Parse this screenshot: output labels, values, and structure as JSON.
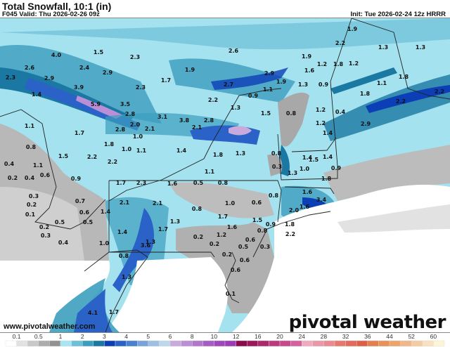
{
  "header": {
    "title": "Total Snowfall, 10:1 (in)",
    "valid": "F045 Valid: Thu 2026-02-26 09z",
    "init": "Init: Tue 2026-02-24 12z HRRR"
  },
  "map": {
    "labels": [
      "4.0",
      "1.5",
      "2.3",
      "2.6",
      "2.3",
      "2.9",
      "2.4",
      "2.9",
      "3.9",
      "1.4",
      "5.9",
      "3.5",
      "2.8",
      "2.3",
      "2.6",
      "1.9",
      "1.7",
      "2.9",
      "2.7",
      "1.9",
      "2.2",
      "1.1",
      "0.9",
      "1.3",
      "1.5",
      "0.8",
      "3.1",
      "3.8",
      "2.8",
      "1.9",
      "2.2",
      "1.3",
      "1.3",
      "1.9",
      "1.2",
      "1.8",
      "1.2",
      "1.6",
      "1.3",
      "0.9",
      "1.8",
      "1.1",
      "1.8",
      "2.2",
      "2.2",
      "1.2",
      "0.4",
      "1.4",
      "2.9",
      "1.1",
      "1.7",
      "1.5",
      "0.8",
      "0.4",
      "1.1",
      "0.2",
      "0.4",
      "0.6",
      "0.9",
      "2.2",
      "2.2",
      "1.8",
      "1.0",
      "1.1",
      "2.0",
      "2.1",
      "2.8",
      "1.0",
      "2.1",
      "1.4",
      "1.8",
      "1.3",
      "0.8",
      "0.3",
      "1.5",
      "1.4",
      "1.3",
      "1.1",
      "1.6",
      "0.5",
      "0.8",
      "1.7",
      "2.3",
      "0.8",
      "0.6",
      "1.0",
      "0.8",
      "1.7",
      "1.5",
      "2.1",
      "2.1",
      "0.7",
      "0.3",
      "0.2",
      "0.1",
      "0.5",
      "0.6",
      "0.5",
      "0.2",
      "0.3",
      "0.4",
      "1.4",
      "1.4",
      "1.7",
      "1.3",
      "1.3",
      "1.0",
      "3.6",
      "0.8",
      "0.2",
      "0.2",
      "1.2",
      "1.6",
      "0.9",
      "0.8",
      "0.6",
      "0.5",
      "0.2",
      "0.6",
      "0.3",
      "0.6",
      "0.1",
      "1.3",
      "4.1",
      "1.7",
      "1.6",
      "1.6",
      "2.0",
      "3.4",
      "1.8",
      "1.0",
      "0.9",
      "1.8",
      "2.2",
      "1.4",
      "1.2"
    ]
  },
  "watermark": "www.pivotalweather.com",
  "logo": "pivotal weather",
  "legend": {
    "ticks": [
      "0.1",
      "0.5",
      "1",
      "2",
      "3",
      "4",
      "5",
      "6",
      "8",
      "10",
      "12",
      "16",
      "20",
      "24",
      "28",
      "32",
      "36",
      "44",
      "52",
      "60"
    ],
    "colors": [
      "#ffffff",
      "#e2e2e2",
      "#c8c8c8",
      "#acacac",
      "#929292",
      "#a6e6f0",
      "#6cc0d8",
      "#3c9ebe",
      "#1a78a2",
      "#0c3fb6",
      "#2a62c8",
      "#4a80d0",
      "#78a2da",
      "#9cbfe2",
      "#bcd8ec",
      "#c8aadc",
      "#bb8fd6",
      "#b077cc",
      "#a55cc4",
      "#a246bc",
      "#9c3cb8",
      "#8a0c4a",
      "#9c1858",
      "#ac2a6a",
      "#bc3a7c",
      "#c8488c",
      "#d4609e",
      "#eeaabe",
      "#ea98a8",
      "#e88a90",
      "#e6786e",
      "#e46a5e",
      "#de5e46",
      "#e4804e",
      "#e8925a",
      "#eca46a",
      "#f0b88a",
      "#f4cca4",
      "#f8e0c0",
      "#fcf6d8"
    ]
  }
}
